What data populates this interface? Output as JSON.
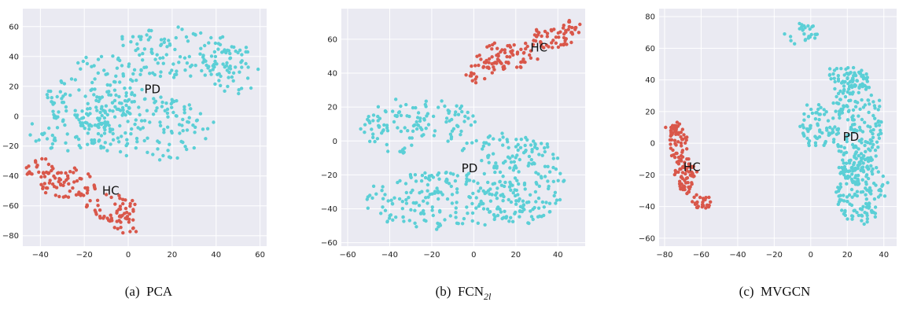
{
  "colors": {
    "PD": "#5bcfd6",
    "HC": "#d9574a",
    "plot_bg": "#eaeaf2",
    "grid": "#ffffff"
  },
  "chart_data": [
    {
      "type": "scatter",
      "caption": {
        "label": "(a)",
        "title": "PCA",
        "subscript": ""
      },
      "xlim": [
        -48,
        63
      ],
      "ylim": [
        -87,
        72
      ],
      "xticks": [
        -40,
        -20,
        0,
        20,
        40,
        60
      ],
      "yticks": [
        -80,
        -60,
        -40,
        -20,
        0,
        20,
        40,
        60
      ],
      "grid": true,
      "legend": "none",
      "cluster_labels": [
        {
          "text": "PD",
          "x": 11,
          "y": 18
        },
        {
          "text": "HC",
          "x": -8,
          "y": -50
        }
      ],
      "series": [
        {
          "name": "PD",
          "approx_points": 500,
          "regions": [
            {
              "cx": 22,
              "cy": 42,
              "rx": 32,
              "ry": 17
            },
            {
              "cx": -15,
              "cy": 15,
              "rx": 22,
              "ry": 25
            },
            {
              "cx": 10,
              "cy": -8,
              "rx": 28,
              "ry": 22
            },
            {
              "cx": 48,
              "cy": 30,
              "rx": 12,
              "ry": 16
            },
            {
              "cx": -25,
              "cy": -10,
              "rx": 20,
              "ry": 14
            }
          ]
        },
        {
          "name": "HC",
          "approx_points": 150,
          "regions": [
            {
              "cx": -28,
              "cy": -45,
              "rx": 14,
              "ry": 10
            },
            {
              "cx": -8,
              "cy": -62,
              "rx": 12,
              "ry": 9
            },
            {
              "cx": -2,
              "cy": -74,
              "rx": 6,
              "ry": 6
            },
            {
              "cx": -40,
              "cy": -35,
              "rx": 7,
              "ry": 7
            }
          ]
        }
      ]
    },
    {
      "type": "scatter",
      "caption": {
        "label": "(b)",
        "title": "FCN",
        "subscript": "2l"
      },
      "xlim": [
        -63,
        53
      ],
      "ylim": [
        -62,
        78
      ],
      "xticks": [
        -60,
        -40,
        -20,
        0,
        20,
        40
      ],
      "yticks": [
        -60,
        -40,
        -20,
        0,
        20,
        40,
        60
      ],
      "grid": true,
      "legend": "none",
      "cluster_labels": [
        {
          "text": "HC",
          "x": 31,
          "y": 55
        },
        {
          "text": "PD",
          "x": -2,
          "y": -16
        }
      ],
      "series": [
        {
          "name": "PD",
          "approx_points": 500,
          "regions": [
            {
              "cx": -10,
              "cy": -35,
              "rx": 42,
              "ry": 18
            },
            {
              "cx": 25,
              "cy": -25,
              "rx": 18,
              "ry": 24
            },
            {
              "cx": -38,
              "cy": 8,
              "rx": 16,
              "ry": 16
            },
            {
              "cx": -15,
              "cy": 12,
              "rx": 16,
              "ry": 12
            },
            {
              "cx": 15,
              "cy": -5,
              "rx": 22,
              "ry": 8
            }
          ]
        },
        {
          "name": "HC",
          "approx_points": 150,
          "regions": [
            {
              "cx": 15,
              "cy": 50,
              "rx": 14,
              "ry": 8
            },
            {
              "cx": 35,
              "cy": 60,
              "rx": 12,
              "ry": 6
            },
            {
              "cx": 45,
              "cy": 67,
              "rx": 6,
              "ry": 5
            },
            {
              "cx": 3,
              "cy": 40,
              "rx": 5,
              "ry": 6
            }
          ]
        }
      ]
    },
    {
      "type": "scatter",
      "caption": {
        "label": "(c)",
        "title": "MVGCN",
        "subscript": ""
      },
      "xlim": [
        -83,
        47
      ],
      "ylim": [
        -65,
        85
      ],
      "xticks": [
        -80,
        -60,
        -40,
        -20,
        0,
        20,
        40
      ],
      "yticks": [
        -60,
        -40,
        -20,
        0,
        20,
        40,
        60,
        80
      ],
      "grid": true,
      "legend": "none",
      "cluster_labels": [
        {
          "text": "PD",
          "x": 22,
          "y": 4
        },
        {
          "text": "HC",
          "x": -65,
          "y": -15
        }
      ],
      "series": [
        {
          "name": "PD",
          "approx_points": 500,
          "regions": [
            {
              "cx": 25,
              "cy": 10,
              "rx": 14,
              "ry": 35
            },
            {
              "cx": 28,
              "cy": -30,
              "rx": 14,
              "ry": 22
            },
            {
              "cx": 20,
              "cy": 40,
              "rx": 12,
              "ry": 10
            },
            {
              "cx": 3,
              "cy": 10,
              "rx": 8,
              "ry": 15
            },
            {
              "cx": -5,
              "cy": 70,
              "rx": 10,
              "ry": 6
            }
          ]
        },
        {
          "name": "HC",
          "approx_points": 150,
          "regions": [
            {
              "cx": -73,
              "cy": 0,
              "rx": 4,
              "ry": 12
            },
            {
              "cx": -69,
              "cy": -20,
              "rx": 5,
              "ry": 12
            },
            {
              "cx": -60,
              "cy": -37,
              "rx": 5,
              "ry": 5
            },
            {
              "cx": -75,
              "cy": 10,
              "rx": 3,
              "ry": 4
            }
          ]
        }
      ]
    }
  ]
}
